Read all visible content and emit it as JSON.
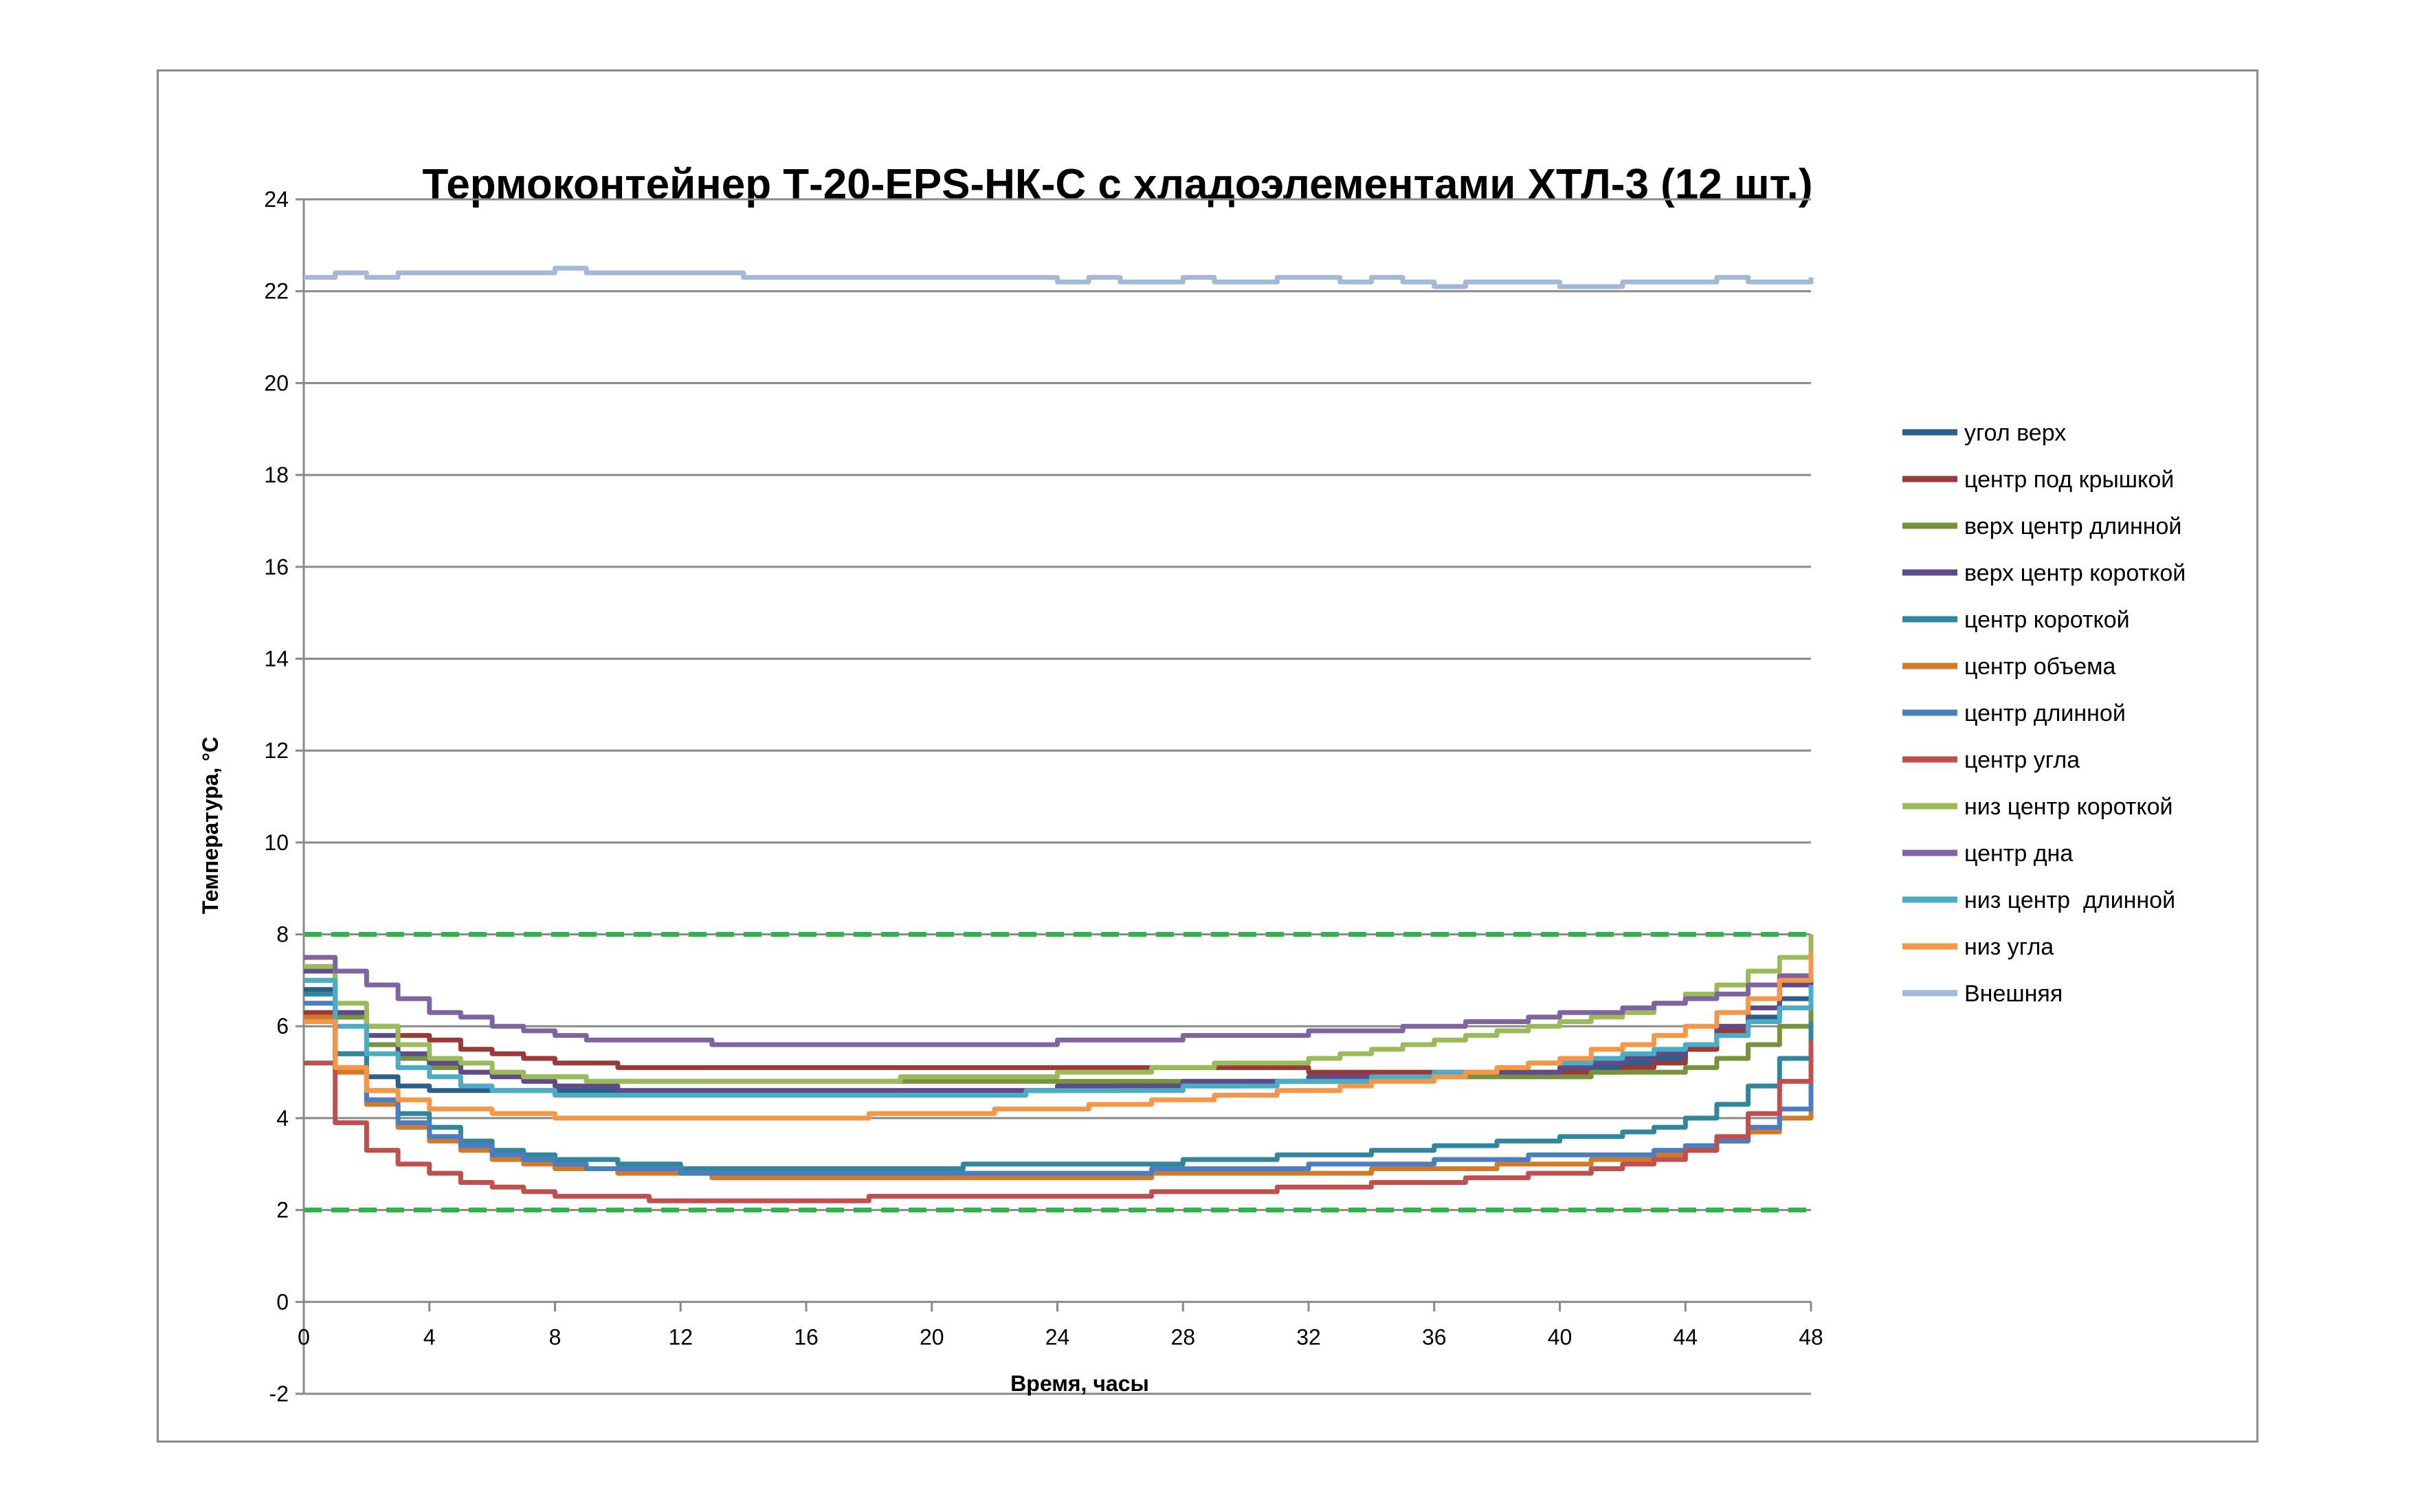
{
  "chart_data": {
    "type": "line",
    "title": "Термоконтейнер Т-20-EPS-НК-С с хладоэлементами ХТЛ-3 (12 шт.)",
    "xlabel": "Время, часы",
    "ylabel": "Температура, °С",
    "xlim": [
      0,
      48
    ],
    "ylim": [
      -2,
      24
    ],
    "x_ticks": [
      "0",
      "4",
      "8",
      "12",
      "16",
      "20",
      "24",
      "28",
      "32",
      "36",
      "40",
      "44",
      "48"
    ],
    "y_ticks": [
      "-2",
      "0",
      "2",
      "4",
      "6",
      "8",
      "10",
      "12",
      "14",
      "16",
      "18",
      "20",
      "22",
      "24"
    ],
    "grid": "horizontal",
    "legend_position": "right",
    "x": [
      0,
      1,
      2,
      3,
      4,
      5,
      6,
      7,
      8,
      9,
      10,
      11,
      12,
      13,
      14,
      15,
      16,
      17,
      18,
      19,
      20,
      21,
      22,
      23,
      24,
      25,
      26,
      27,
      28,
      29,
      30,
      31,
      32,
      33,
      34,
      35,
      36,
      37,
      38,
      39,
      40,
      41,
      42,
      43,
      44,
      45,
      46,
      47,
      48
    ],
    "series": [
      {
        "name": "угол верх",
        "color": "#2d5f8a",
        "values": [
          6.8,
          5.4,
          4.9,
          4.7,
          4.6,
          4.6,
          4.6,
          4.6,
          4.6,
          4.6,
          4.6,
          4.6,
          4.6,
          4.6,
          4.6,
          4.6,
          4.6,
          4.6,
          4.6,
          4.6,
          4.6,
          4.6,
          4.6,
          4.6,
          4.6,
          4.6,
          4.7,
          4.7,
          4.7,
          4.7,
          4.8,
          4.8,
          4.8,
          4.9,
          4.9,
          4.9,
          5.0,
          5.0,
          5.0,
          5.0,
          5.1,
          5.1,
          5.2,
          5.3,
          5.5,
          5.8,
          6.2,
          6.6,
          7.0
        ]
      },
      {
        "name": "центр под крышкой",
        "color": "#9a3a37",
        "values": [
          6.3,
          6.2,
          6.0,
          5.8,
          5.7,
          5.5,
          5.4,
          5.3,
          5.2,
          5.2,
          5.1,
          5.1,
          5.1,
          5.1,
          5.1,
          5.1,
          5.1,
          5.1,
          5.1,
          5.1,
          5.1,
          5.1,
          5.1,
          5.1,
          5.1,
          5.1,
          5.1,
          5.1,
          5.1,
          5.1,
          5.1,
          5.1,
          5.0,
          5.0,
          5.0,
          5.0,
          5.0,
          5.0,
          5.0,
          5.0,
          5.0,
          5.0,
          5.1,
          5.2,
          5.5,
          5.9,
          6.4,
          7.0,
          7.7
        ]
      },
      {
        "name": "верх центр длинной",
        "color": "#77933c",
        "values": [
          7.0,
          6.2,
          5.6,
          5.3,
          5.1,
          5.0,
          5.0,
          4.9,
          4.9,
          4.8,
          4.8,
          4.8,
          4.8,
          4.8,
          4.8,
          4.8,
          4.8,
          4.8,
          4.8,
          4.8,
          4.8,
          4.8,
          4.8,
          4.8,
          4.8,
          4.8,
          4.8,
          4.8,
          4.8,
          4.8,
          4.8,
          4.8,
          4.8,
          4.8,
          4.9,
          4.9,
          4.9,
          4.9,
          4.9,
          4.9,
          4.9,
          5.0,
          5.0,
          5.0,
          5.1,
          5.3,
          5.6,
          6.0,
          6.4
        ]
      },
      {
        "name": "верх центр короткой",
        "color": "#5f4a8b",
        "values": [
          7.2,
          6.3,
          5.8,
          5.4,
          5.2,
          5.0,
          4.9,
          4.8,
          4.7,
          4.7,
          4.6,
          4.6,
          4.6,
          4.6,
          4.6,
          4.6,
          4.6,
          4.6,
          4.6,
          4.6,
          4.6,
          4.6,
          4.6,
          4.6,
          4.7,
          4.7,
          4.7,
          4.7,
          4.8,
          4.8,
          4.8,
          4.8,
          4.9,
          4.9,
          4.9,
          4.9,
          5.0,
          5.0,
          5.0,
          5.0,
          5.1,
          5.2,
          5.3,
          5.4,
          5.6,
          6.0,
          6.4,
          6.9,
          7.4
        ]
      },
      {
        "name": "центр короткой",
        "color": "#31859c",
        "values": [
          6.7,
          5.4,
          4.6,
          4.1,
          3.8,
          3.5,
          3.3,
          3.2,
          3.1,
          3.1,
          3.0,
          3.0,
          2.9,
          2.9,
          2.9,
          2.9,
          2.9,
          2.9,
          2.9,
          2.9,
          2.9,
          3.0,
          3.0,
          3.0,
          3.0,
          3.0,
          3.0,
          3.0,
          3.1,
          3.1,
          3.1,
          3.2,
          3.2,
          3.2,
          3.3,
          3.3,
          3.4,
          3.4,
          3.5,
          3.5,
          3.6,
          3.6,
          3.7,
          3.8,
          4.0,
          4.3,
          4.7,
          5.3,
          6.1
        ]
      },
      {
        "name": "центр объема",
        "color": "#d27a2b",
        "values": [
          6.2,
          5.0,
          4.3,
          3.8,
          3.5,
          3.3,
          3.1,
          3.0,
          2.9,
          2.9,
          2.8,
          2.8,
          2.8,
          2.7,
          2.7,
          2.7,
          2.7,
          2.7,
          2.7,
          2.7,
          2.7,
          2.7,
          2.7,
          2.7,
          2.7,
          2.7,
          2.7,
          2.8,
          2.8,
          2.8,
          2.8,
          2.8,
          2.8,
          2.8,
          2.9,
          2.9,
          2.9,
          2.9,
          3.0,
          3.0,
          3.0,
          3.1,
          3.1,
          3.2,
          3.3,
          3.5,
          3.7,
          4.0,
          4.5
        ]
      },
      {
        "name": "центр длинной",
        "color": "#4a7dc1",
        "values": [
          6.5,
          5.1,
          4.4,
          3.9,
          3.6,
          3.4,
          3.2,
          3.1,
          3.0,
          2.9,
          2.9,
          2.9,
          2.8,
          2.8,
          2.8,
          2.8,
          2.8,
          2.8,
          2.8,
          2.8,
          2.8,
          2.8,
          2.8,
          2.8,
          2.8,
          2.8,
          2.8,
          2.9,
          2.9,
          2.9,
          2.9,
          2.9,
          3.0,
          3.0,
          3.0,
          3.0,
          3.1,
          3.1,
          3.1,
          3.2,
          3.2,
          3.2,
          3.2,
          3.3,
          3.4,
          3.5,
          3.8,
          4.2,
          4.8
        ]
      },
      {
        "name": "центр угла",
        "color": "#c0504d",
        "values": [
          5.2,
          3.9,
          3.3,
          3.0,
          2.8,
          2.6,
          2.5,
          2.4,
          2.3,
          2.3,
          2.3,
          2.2,
          2.2,
          2.2,
          2.2,
          2.2,
          2.2,
          2.2,
          2.3,
          2.3,
          2.3,
          2.3,
          2.3,
          2.3,
          2.3,
          2.3,
          2.3,
          2.4,
          2.4,
          2.4,
          2.4,
          2.5,
          2.5,
          2.5,
          2.6,
          2.6,
          2.6,
          2.7,
          2.7,
          2.8,
          2.8,
          2.9,
          3.0,
          3.1,
          3.3,
          3.6,
          4.1,
          4.8,
          5.7
        ]
      },
      {
        "name": "низ центр короткой",
        "color": "#9bbb59",
        "values": [
          7.3,
          6.5,
          6.0,
          5.6,
          5.3,
          5.2,
          5.0,
          4.9,
          4.9,
          4.8,
          4.8,
          4.8,
          4.8,
          4.8,
          4.8,
          4.8,
          4.8,
          4.8,
          4.8,
          4.9,
          4.9,
          4.9,
          4.9,
          4.9,
          5.0,
          5.0,
          5.0,
          5.1,
          5.1,
          5.2,
          5.2,
          5.2,
          5.3,
          5.4,
          5.5,
          5.6,
          5.7,
          5.8,
          5.9,
          6.0,
          6.1,
          6.2,
          6.3,
          6.5,
          6.7,
          6.9,
          7.2,
          7.5,
          8.0
        ]
      },
      {
        "name": "центр дна",
        "color": "#8064a2",
        "values": [
          7.5,
          7.2,
          6.9,
          6.6,
          6.3,
          6.2,
          6.0,
          5.9,
          5.8,
          5.7,
          5.7,
          5.7,
          5.7,
          5.6,
          5.6,
          5.6,
          5.6,
          5.6,
          5.6,
          5.6,
          5.6,
          5.6,
          5.6,
          5.6,
          5.7,
          5.7,
          5.7,
          5.7,
          5.8,
          5.8,
          5.8,
          5.8,
          5.9,
          5.9,
          5.9,
          6.0,
          6.0,
          6.1,
          6.1,
          6.2,
          6.3,
          6.3,
          6.4,
          6.5,
          6.6,
          6.7,
          6.9,
          7.1,
          7.5
        ]
      },
      {
        "name": "низ центр  длинной",
        "color": "#4bacc6",
        "values": [
          7.0,
          6.0,
          5.4,
          5.1,
          4.9,
          4.7,
          4.6,
          4.6,
          4.5,
          4.5,
          4.5,
          4.5,
          4.5,
          4.5,
          4.5,
          4.5,
          4.5,
          4.5,
          4.5,
          4.5,
          4.5,
          4.5,
          4.5,
          4.6,
          4.6,
          4.6,
          4.6,
          4.6,
          4.7,
          4.7,
          4.7,
          4.8,
          4.8,
          4.8,
          4.9,
          4.9,
          5.0,
          5.0,
          5.1,
          5.2,
          5.2,
          5.3,
          5.4,
          5.5,
          5.6,
          5.8,
          6.1,
          6.4,
          6.9
        ]
      },
      {
        "name": "низ угла",
        "color": "#f79646",
        "values": [
          6.1,
          5.1,
          4.6,
          4.4,
          4.2,
          4.2,
          4.1,
          4.1,
          4.0,
          4.0,
          4.0,
          4.0,
          4.0,
          4.0,
          4.0,
          4.0,
          4.0,
          4.0,
          4.1,
          4.1,
          4.1,
          4.1,
          4.2,
          4.2,
          4.2,
          4.3,
          4.3,
          4.4,
          4.4,
          4.5,
          4.5,
          4.6,
          4.6,
          4.7,
          4.8,
          4.8,
          4.9,
          5.0,
          5.1,
          5.2,
          5.3,
          5.5,
          5.6,
          5.8,
          6.0,
          6.3,
          6.6,
          7.0,
          7.6
        ]
      },
      {
        "name": "Внешняя",
        "color": "#a4b8d8",
        "values": [
          22.3,
          22.4,
          22.3,
          22.4,
          22.4,
          22.4,
          22.4,
          22.4,
          22.5,
          22.4,
          22.4,
          22.4,
          22.4,
          22.4,
          22.3,
          22.3,
          22.3,
          22.3,
          22.3,
          22.3,
          22.3,
          22.3,
          22.3,
          22.3,
          22.2,
          22.3,
          22.2,
          22.2,
          22.3,
          22.2,
          22.2,
          22.3,
          22.3,
          22.2,
          22.3,
          22.2,
          22.1,
          22.2,
          22.2,
          22.2,
          22.1,
          22.1,
          22.2,
          22.2,
          22.2,
          22.3,
          22.2,
          22.2,
          22.3
        ]
      }
    ],
    "reference_lines": [
      {
        "y": 8,
        "color": "#2eb34a",
        "style": "dashed"
      },
      {
        "y": 2,
        "color": "#2eb34a",
        "style": "dashed"
      }
    ]
  }
}
